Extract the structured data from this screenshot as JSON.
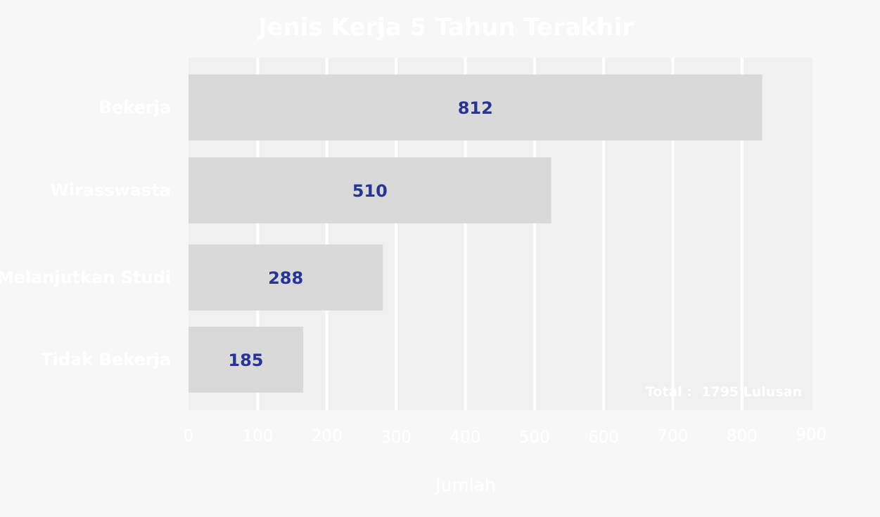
{
  "colors": {
    "background": "#f7f7f7",
    "plot_background": "#f0f0f0",
    "gridline": "#ffffff",
    "bar": "#d9d9d9",
    "value_label": "#283593",
    "text": "#ffffff"
  },
  "chart_data": {
    "type": "bar",
    "orientation": "horizontal",
    "title": "Jenis Kerja 5 Tahun Terakhir",
    "xlabel": "Jumlah",
    "ylabel": "",
    "categories": [
      "Bekerja",
      "Wirasswasta",
      "Melanjutkan Studi",
      "Tidak Bekerja"
    ],
    "values": [
      812,
      510,
      288,
      185
    ],
    "value_labels": [
      "812",
      "510",
      "288",
      "185"
    ],
    "xlim": [
      0,
      900
    ],
    "xticks": [
      "0",
      "100",
      "200",
      "300",
      "400",
      "500",
      "600",
      "700",
      "800",
      "900"
    ],
    "grid": true,
    "annotation": "Total :  1795 Lulusan"
  }
}
